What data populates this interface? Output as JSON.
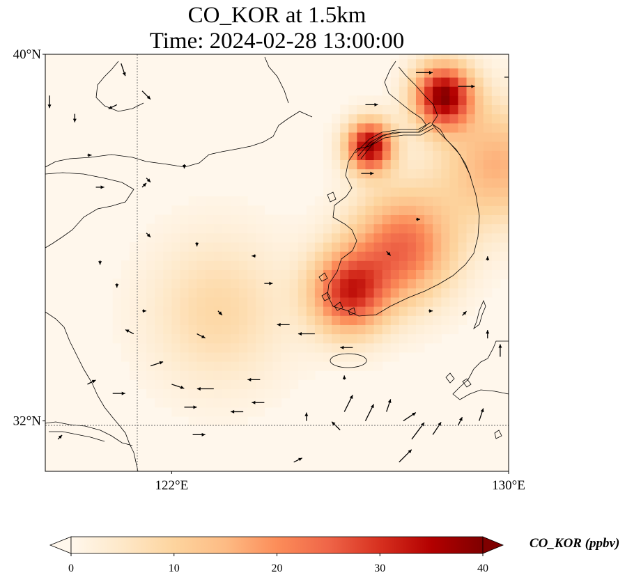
{
  "title": {
    "line1": "CO_KOR at 1.5km",
    "line2": "Time: 2024-02-28 13:00:00"
  },
  "map": {
    "extent": {
      "lon_min": 119.0,
      "lon_max": 130.0,
      "lat_min": 30.9,
      "lat_max": 40.0
    },
    "gridlines": {
      "lons": [
        122
      ],
      "lats": [
        32
      ]
    },
    "tick_labels": {
      "lat": [
        {
          "value": 40,
          "label": "40°N"
        },
        {
          "value": 32,
          "label": "32°N"
        }
      ],
      "lon": [
        {
          "value": 122,
          "label": "122°E"
        },
        {
          "value": 130,
          "label": "130°E"
        }
      ]
    },
    "plumes": [
      {
        "name": "pyongyang-hotspot",
        "lon": 128.35,
        "lat": 39.0,
        "peak": 38,
        "radius_deg": 0.7
      },
      {
        "name": "nampo-hotspot",
        "lon": 126.6,
        "lat": 37.9,
        "peak": 37,
        "radius_deg": 0.55
      },
      {
        "name": "southwest-coast",
        "lon": 126.1,
        "lat": 34.7,
        "peak": 29,
        "radius_deg": 0.9
      },
      {
        "name": "central-korea",
        "lon": 127.4,
        "lat": 35.7,
        "peak": 24,
        "radius_deg": 1.2
      },
      {
        "name": "east-korea",
        "lon": 129.6,
        "lat": 37.5,
        "peak": 16,
        "radius_deg": 1.3
      },
      {
        "name": "yellow-sea-band",
        "lon": 123.0,
        "lat": 34.3,
        "peak": 9,
        "radius_deg": 1.6
      }
    ],
    "wind_arrows": [
      [
        119.1,
        39.1,
        0.0,
        -0.3
      ],
      [
        120.8,
        39.8,
        0.1,
        -0.3
      ],
      [
        120.7,
        38.9,
        -0.2,
        -0.1
      ],
      [
        121.3,
        39.2,
        0.2,
        -0.2
      ],
      [
        119.7,
        38.7,
        0.0,
        -0.2
      ],
      [
        122.3,
        37.6,
        0.0,
        -0.1
      ],
      [
        120.0,
        37.8,
        0.1,
        0.0
      ],
      [
        120.2,
        37.1,
        0.2,
        0.0
      ],
      [
        121.3,
        37.1,
        0.1,
        0.1
      ],
      [
        121.4,
        36.1,
        0.1,
        -0.1
      ],
      [
        122.6,
        35.9,
        0.0,
        -0.1
      ],
      [
        124.0,
        35.6,
        -0.1,
        0.0
      ],
      [
        120.3,
        35.5,
        0.0,
        -0.1
      ],
      [
        120.7,
        35.0,
        0.0,
        -0.1
      ],
      [
        121.3,
        34.4,
        0.1,
        0.0
      ],
      [
        123.1,
        34.4,
        0.1,
        -0.1
      ],
      [
        124.2,
        35.0,
        0.2,
        0.0
      ],
      [
        124.8,
        34.1,
        -0.3,
        0.0
      ],
      [
        122.6,
        33.9,
        0.2,
        -0.1
      ],
      [
        125.4,
        33.9,
        -0.4,
        0.0
      ],
      [
        126.3,
        33.6,
        -0.3,
        0.0
      ],
      [
        121.1,
        33.9,
        -0.2,
        0.1
      ],
      [
        121.5,
        33.2,
        0.3,
        0.1
      ],
      [
        122.0,
        32.8,
        0.3,
        -0.1
      ],
      [
        123.0,
        32.7,
        -0.4,
        0.0
      ],
      [
        124.1,
        32.9,
        -0.3,
        0.0
      ],
      [
        124.2,
        32.4,
        -0.3,
        0.0
      ],
      [
        120.0,
        32.8,
        0.2,
        0.1
      ],
      [
        120.6,
        32.6,
        0.3,
        0.0
      ],
      [
        122.3,
        32.3,
        0.3,
        0.0
      ],
      [
        123.7,
        32.2,
        -0.3,
        0.0
      ],
      [
        125.2,
        32.0,
        0.0,
        0.2
      ],
      [
        126.1,
        32.2,
        0.2,
        0.4
      ],
      [
        126.6,
        32.0,
        0.2,
        0.4
      ],
      [
        127.1,
        32.2,
        0.1,
        0.3
      ],
      [
        127.7,
        31.6,
        0.3,
        0.4
      ],
      [
        128.2,
        31.7,
        0.2,
        0.3
      ],
      [
        127.5,
        32.0,
        0.3,
        0.2
      ],
      [
        126.0,
        31.8,
        -0.2,
        0.2
      ],
      [
        127.4,
        31.1,
        0.3,
        0.3
      ],
      [
        128.8,
        31.9,
        0.1,
        0.2
      ],
      [
        129.3,
        32.0,
        0.1,
        0.3
      ],
      [
        129.5,
        33.8,
        0.0,
        0.2
      ],
      [
        129.8,
        33.4,
        0.0,
        0.3
      ],
      [
        124.9,
        31.1,
        0.2,
        0.1
      ],
      [
        122.5,
        31.7,
        0.3,
        0.0
      ],
      [
        119.3,
        31.6,
        0.1,
        0.1
      ],
      [
        121.4,
        37.3,
        0.1,
        -0.1
      ],
      [
        127.8,
        39.6,
        0.4,
        0.0
      ],
      [
        128.8,
        39.3,
        0.4,
        0.0
      ],
      [
        129.9,
        39.5,
        0.3,
        0.0
      ],
      [
        126.6,
        38.9,
        0.3,
        0.0
      ],
      [
        127.1,
        35.7,
        0.1,
        -0.1
      ],
      [
        128.9,
        34.3,
        0.1,
        0.1
      ],
      [
        129.5,
        35.5,
        0.0,
        0.1
      ],
      [
        128.1,
        34.4,
        0.1,
        0.0
      ],
      [
        126.5,
        37.4,
        0.3,
        0.0
      ],
      [
        125.4,
        36.2,
        0.0,
        0.0
      ],
      [
        127.8,
        36.4,
        0.1,
        0.0
      ],
      [
        126.1,
        32.9,
        0.0,
        0.1
      ]
    ]
  },
  "colorbar": {
    "label": "CO_KOR (ppbv)",
    "min": 0,
    "max": 40,
    "ticks": [
      0,
      10,
      20,
      30,
      40
    ],
    "extend": "both",
    "colormap": "OrRd",
    "stops": [
      {
        "v": 0,
        "color": "#fff7ec"
      },
      {
        "v": 5,
        "color": "#fee8c8"
      },
      {
        "v": 10,
        "color": "#fdd49e"
      },
      {
        "v": 15,
        "color": "#fdbb84"
      },
      {
        "v": 20,
        "color": "#fc8d59"
      },
      {
        "v": 25,
        "color": "#ef6548"
      },
      {
        "v": 30,
        "color": "#d7301f"
      },
      {
        "v": 35,
        "color": "#b30000"
      },
      {
        "v": 40,
        "color": "#7f0000"
      }
    ]
  }
}
